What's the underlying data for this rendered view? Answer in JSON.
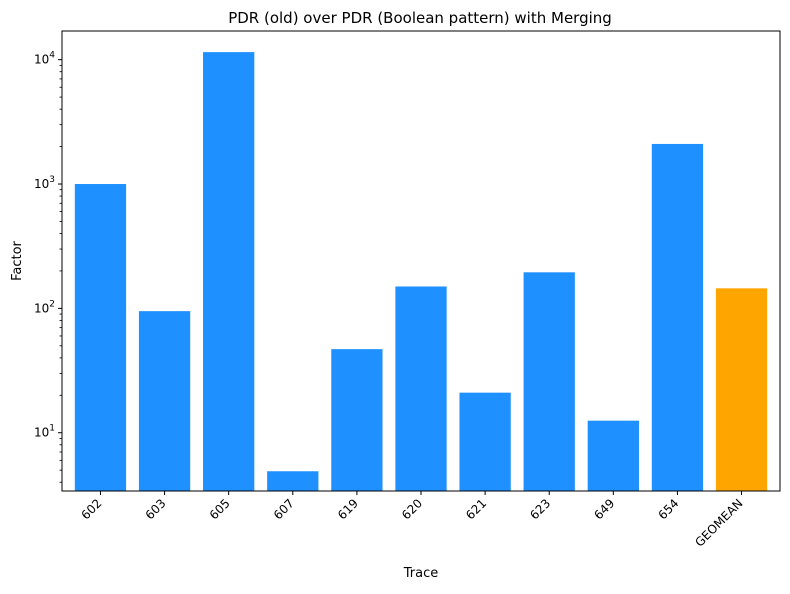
{
  "chart_data": {
    "type": "bar",
    "title": "PDR (old) over PDR (Boolean pattern) with Merging",
    "xlabel": "Trace",
    "ylabel": "Factor",
    "y_scale": "log",
    "ylim": [
      3.4,
      17000
    ],
    "grid": false,
    "legend": "none",
    "categories": [
      "602",
      "603",
      "605",
      "607",
      "619",
      "620",
      "621",
      "623",
      "649",
      "654",
      "GEOMEAN"
    ],
    "values": [
      1000,
      95,
      11500,
      4.9,
      47,
      150,
      21,
      195,
      12.5,
      2100,
      145
    ],
    "colors": [
      "#1e90ff",
      "#1e90ff",
      "#1e90ff",
      "#1e90ff",
      "#1e90ff",
      "#1e90ff",
      "#1e90ff",
      "#1e90ff",
      "#1e90ff",
      "#1e90ff",
      "#ffa500"
    ],
    "y_major_ticks": [
      {
        "value": 10,
        "base": "10",
        "exp": "1"
      },
      {
        "value": 100,
        "base": "10",
        "exp": "2"
      },
      {
        "value": 1000,
        "base": "10",
        "exp": "3"
      },
      {
        "value": 10000,
        "base": "10",
        "exp": "4"
      }
    ]
  }
}
